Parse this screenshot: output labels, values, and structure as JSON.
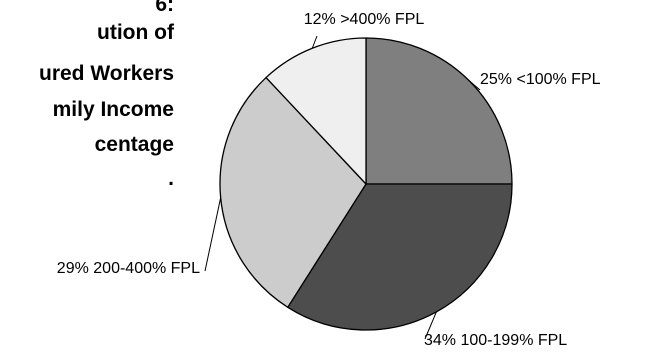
{
  "title_lines": [
    "6:",
    "ution of",
    "ured Workers",
    "mily Income",
    "centage",
    "."
  ],
  "chart_data": {
    "type": "pie",
    "title": "",
    "legend": "none",
    "slices": [
      {
        "label": "<100% FPL",
        "value": 25,
        "display": "25%",
        "color": "#7f7f7f"
      },
      {
        "label": "100-199% FPL",
        "value": 34,
        "display": "34%",
        "color": "#4d4d4d"
      },
      {
        "label": "200-400% FPL",
        "value": 29,
        "display": "29%",
        "color": "#cccccc"
      },
      {
        "label": ">400% FPL",
        "value": 12,
        "display": "12%",
        "color": "#efefef"
      }
    ]
  }
}
